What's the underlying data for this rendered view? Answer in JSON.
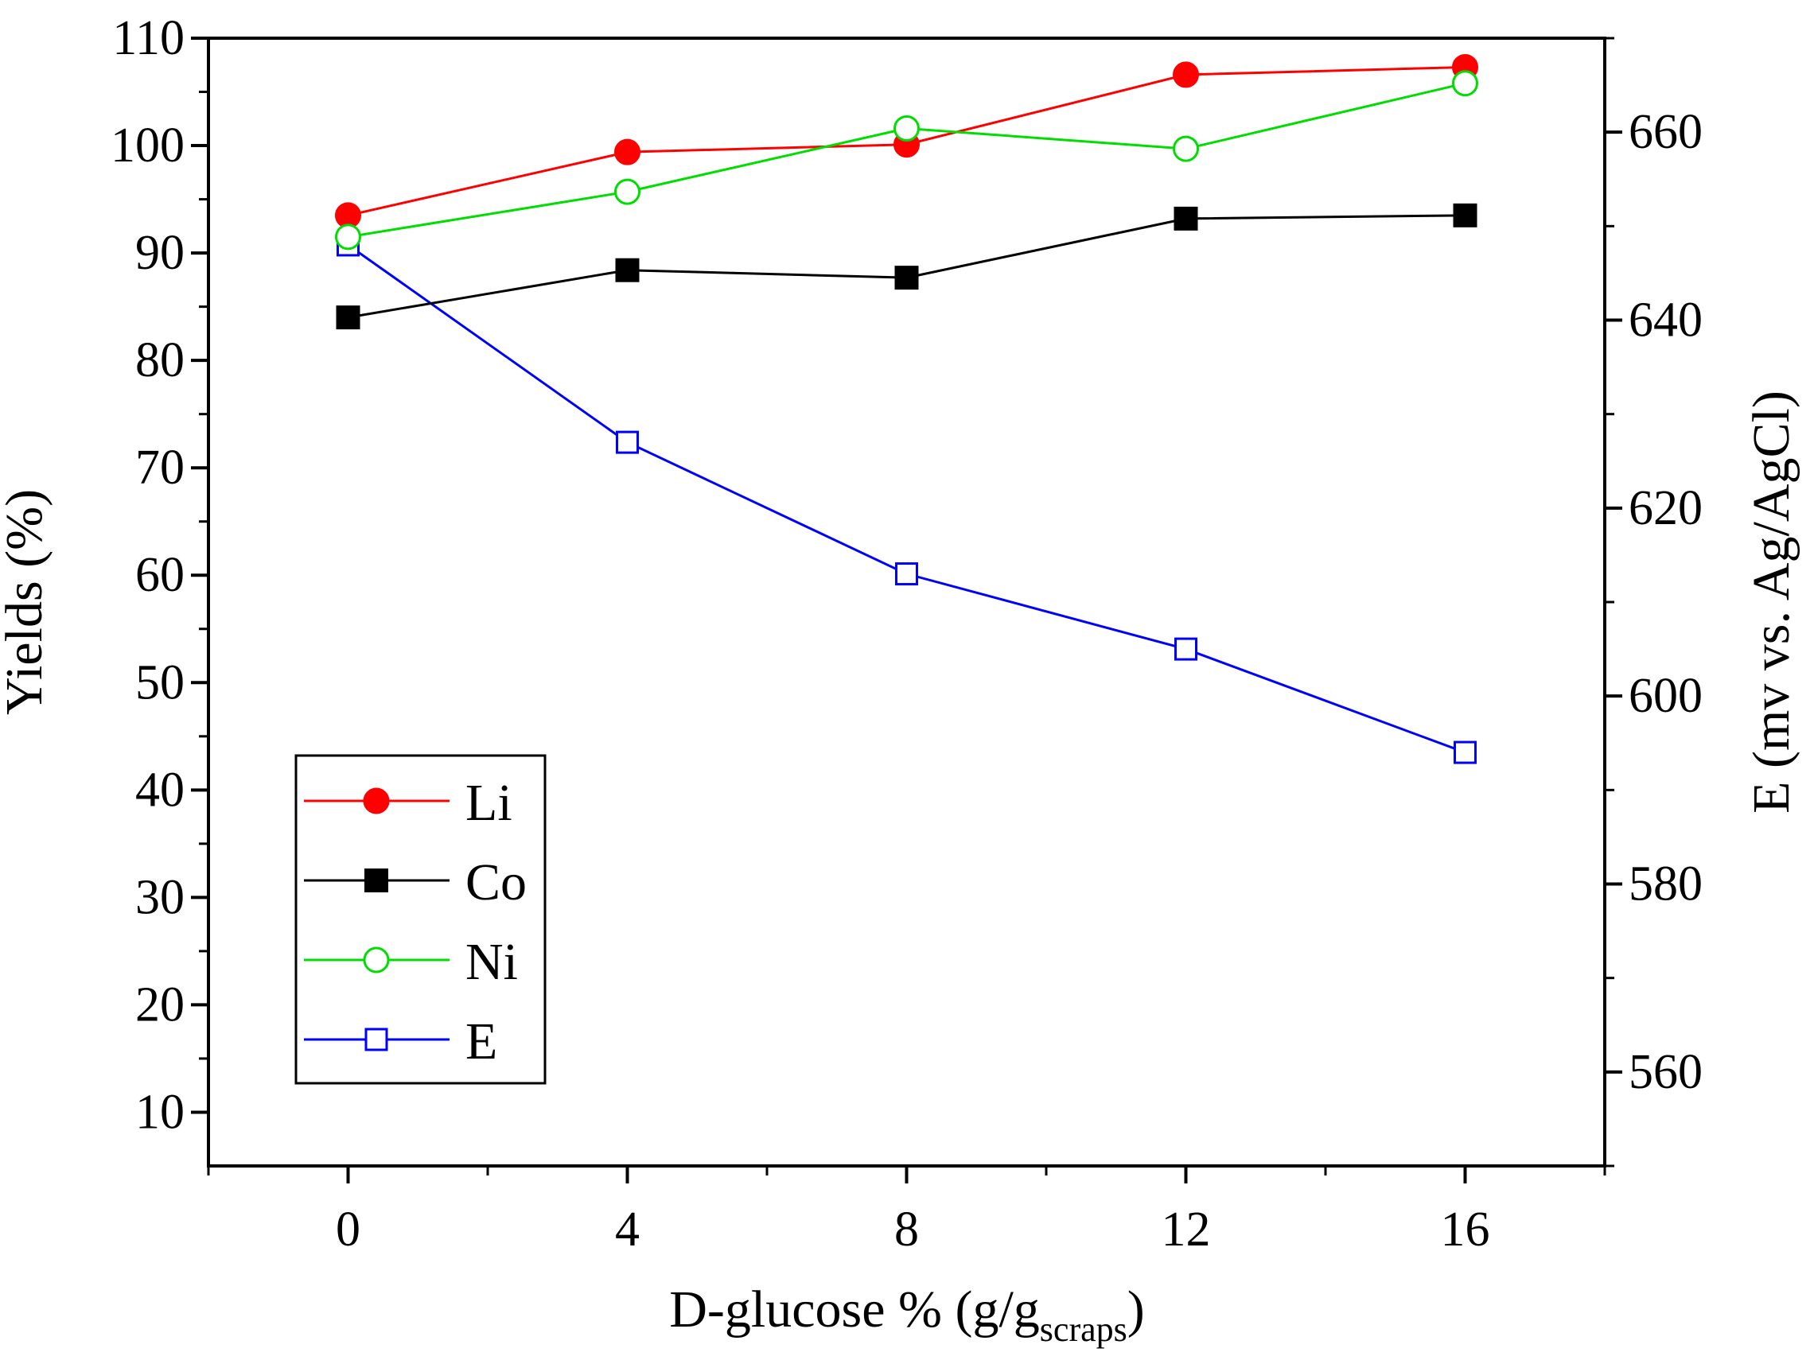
{
  "chart_data": {
    "type": "line",
    "xlabel": "D-glucose % (g/g",
    "xlabel_sub": "scraps",
    "xlabel_close": ")",
    "ylabel": "Yields (%)",
    "y2label": "E (mv vs. Ag/AgCl)",
    "xlim": [
      -2,
      18
    ],
    "ylim": [
      5,
      110
    ],
    "y2lim": [
      550,
      670
    ],
    "x_ticks": [
      0,
      4,
      8,
      12,
      16
    ],
    "x_tick_labels": [
      "0",
      "4",
      "8",
      "12",
      "16"
    ],
    "y_ticks": [
      10,
      20,
      30,
      40,
      50,
      60,
      70,
      80,
      90,
      100,
      110
    ],
    "y_tick_labels": [
      "10",
      "20",
      "30",
      "40",
      "50",
      "60",
      "70",
      "80",
      "90",
      "100",
      "110"
    ],
    "y2_ticks": [
      560,
      580,
      600,
      620,
      640,
      660
    ],
    "y2_tick_labels": [
      "560",
      "580",
      "600",
      "620",
      "640",
      "660"
    ],
    "grid": false,
    "legend_position": "bottom-left",
    "x": [
      0,
      4,
      8,
      12,
      16
    ],
    "series": [
      {
        "name": "Li",
        "axis": "left",
        "values": [
          93.5,
          99.4,
          100.1,
          106.6,
          107.3
        ],
        "color": "#ff0000",
        "marker": "circle-filled"
      },
      {
        "name": "Co",
        "axis": "left",
        "values": [
          84.0,
          88.4,
          87.7,
          93.2,
          93.5
        ],
        "color": "#000000",
        "marker": "square-filled"
      },
      {
        "name": "Ni",
        "axis": "left",
        "values": [
          91.5,
          95.7,
          101.6,
          99.7,
          105.8
        ],
        "color": "#00dd00",
        "marker": "circle-open"
      },
      {
        "name": "E",
        "axis": "right",
        "values": [
          648,
          627,
          613,
          605,
          594
        ],
        "color": "#0000ff",
        "marker": "square-open"
      }
    ]
  }
}
